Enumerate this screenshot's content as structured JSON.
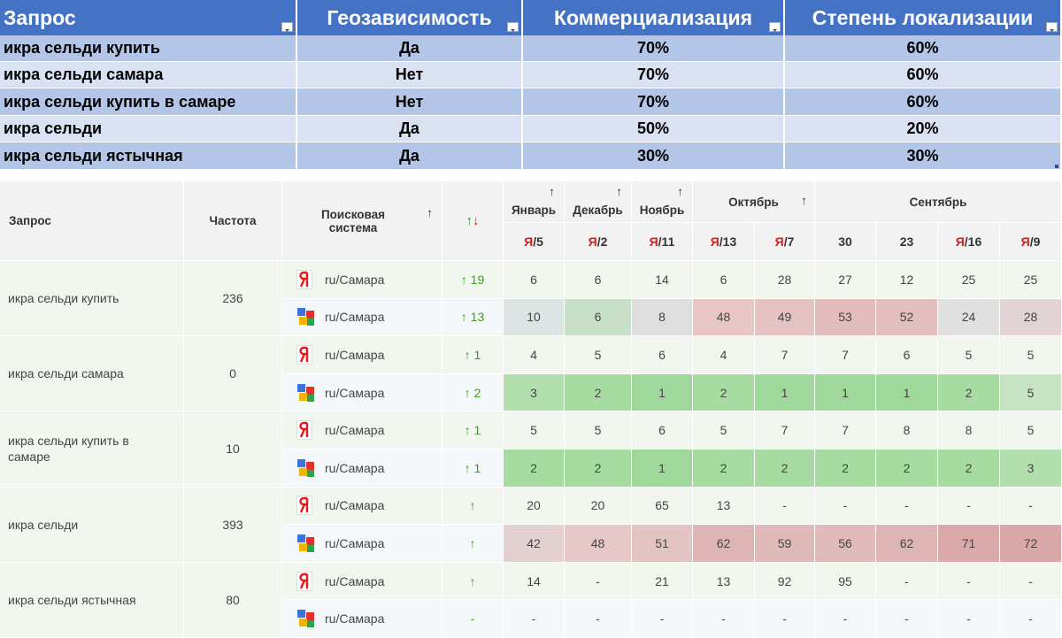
{
  "top_table": {
    "headers": [
      "Запрос",
      "Геозависимость",
      "Коммерциализация",
      "Степень локализации"
    ],
    "rows": [
      [
        "икра сельди купить",
        "Да",
        "70%",
        "60%"
      ],
      [
        "икра сельди самара",
        "Нет",
        "70%",
        "60%"
      ],
      [
        "икра сельди купить в самаре",
        "Нет",
        "70%",
        "60%"
      ],
      [
        "икра сельди",
        "Да",
        "50%",
        "20%"
      ],
      [
        "икра сельди ястычная",
        "Да",
        "30%",
        "30%"
      ]
    ]
  },
  "bottom_table": {
    "headers": {
      "query": "Запрос",
      "frequency": "Частота",
      "engine": "Поисковая система",
      "engine_sort": "↑",
      "dynamics_up": "↑",
      "dynamics_down": "↓",
      "months": [
        {
          "name": "Январь",
          "sort": "↑",
          "columns": [
            {
              "mark": "Я",
              "text": "/5"
            }
          ]
        },
        {
          "name": "Декабрь",
          "sort": "↑",
          "columns": [
            {
              "mark": "Я",
              "text": "/2"
            }
          ]
        },
        {
          "name": "Ноябрь",
          "sort": "↑",
          "columns": [
            {
              "mark": "Я",
              "text": "/11"
            }
          ]
        },
        {
          "name": "Октябрь",
          "sort": "↑",
          "columns": [
            {
              "mark": "Я",
              "text": "/13"
            },
            {
              "mark": "Я",
              "text": "/7"
            }
          ]
        },
        {
          "name": "Сентябрь",
          "columns": [
            {
              "text": "30"
            },
            {
              "text": "23"
            },
            {
              "mark": "Я",
              "text": "/16"
            },
            {
              "mark": "Я",
              "text": "/9"
            }
          ]
        }
      ]
    },
    "groups": [
      {
        "query": "икра сельди купить",
        "frequency": "236",
        "rows": [
          {
            "region": "ru/Самара",
            "change": "↑ 19",
            "cells": [
              "6",
              "6",
              "14",
              "6",
              "28",
              "27",
              "12",
              "25",
              "25"
            ]
          },
          {
            "region": "ru/Самара",
            "change": "↑ 13",
            "cells": [
              "10",
              "6",
              "8",
              "48",
              "49",
              "53",
              "52",
              "24",
              "28"
            ],
            "colors": [
              "#dde5e4",
              "#c9e0c8",
              "#dedede",
              "#e8c6c6",
              "#e6c3c3",
              "#e2bcbc",
              "#e3bebe",
              "#e0e0e0",
              "#e2d4d4"
            ]
          }
        ]
      },
      {
        "query": "икра сельди самара",
        "frequency": "0",
        "rows": [
          {
            "region": "ru/Самара",
            "change": "↑ 1",
            "cells": [
              "4",
              "5",
              "6",
              "4",
              "7",
              "7",
              "6",
              "5",
              "5"
            ]
          },
          {
            "region": "ru/Самара",
            "change": "↑ 2",
            "cells": [
              "3",
              "2",
              "1",
              "2",
              "1",
              "1",
              "1",
              "2",
              "5"
            ],
            "colors": [
              "#b3dfaf",
              "#a6dba2",
              "#9ed89a",
              "#a6dba2",
              "#9ed89a",
              "#9ed89a",
              "#9ed89a",
              "#a6dba2",
              "#c6e4c3"
            ]
          }
        ]
      },
      {
        "query": "икра сельди купить в самаре",
        "frequency": "10",
        "rows": [
          {
            "region": "ru/Самара",
            "change": "↑ 1",
            "cells": [
              "5",
              "5",
              "6",
              "5",
              "7",
              "7",
              "8",
              "8",
              "5"
            ]
          },
          {
            "region": "ru/Самара",
            "change": "↑ 1",
            "cells": [
              "2",
              "2",
              "1",
              "2",
              "2",
              "2",
              "2",
              "2",
              "3"
            ],
            "colors": [
              "#a6dba2",
              "#a6dba2",
              "#9ed89a",
              "#a6dba2",
              "#a6dba2",
              "#a6dba2",
              "#a6dba2",
              "#a6dba2",
              "#b3dfaf"
            ]
          }
        ]
      },
      {
        "query": "икра сельди",
        "frequency": "393",
        "rows": [
          {
            "region": "ru/Самара",
            "change": "↑",
            "cells": [
              "20",
              "20",
              "65",
              "13",
              "-",
              "-",
              "-",
              "-",
              "-"
            ]
          },
          {
            "region": "ru/Самара",
            "change": "↑",
            "cells": [
              "42",
              "48",
              "51",
              "62",
              "59",
              "56",
              "62",
              "71",
              "72"
            ],
            "colors": [
              "#e3d0d0",
              "#e6c8c8",
              "#e4c3c3",
              "#deb5b5",
              "#e0b9b9",
              "#e1bbbb",
              "#deb5b5",
              "#dba9a9",
              "#d9a7a7"
            ]
          }
        ]
      },
      {
        "query": "икра сельди ястычная",
        "frequency": "80",
        "rows": [
          {
            "region": "ru/Самара",
            "change": "↑",
            "cells": [
              "14",
              "-",
              "21",
              "13",
              "92",
              "95",
              "-",
              "-",
              "-"
            ]
          },
          {
            "region": "ru/Самара",
            "change": "-",
            "cells": [
              "-",
              "-",
              "-",
              "-",
              "-",
              "-",
              "-",
              "-",
              "-"
            ]
          }
        ]
      }
    ]
  }
}
